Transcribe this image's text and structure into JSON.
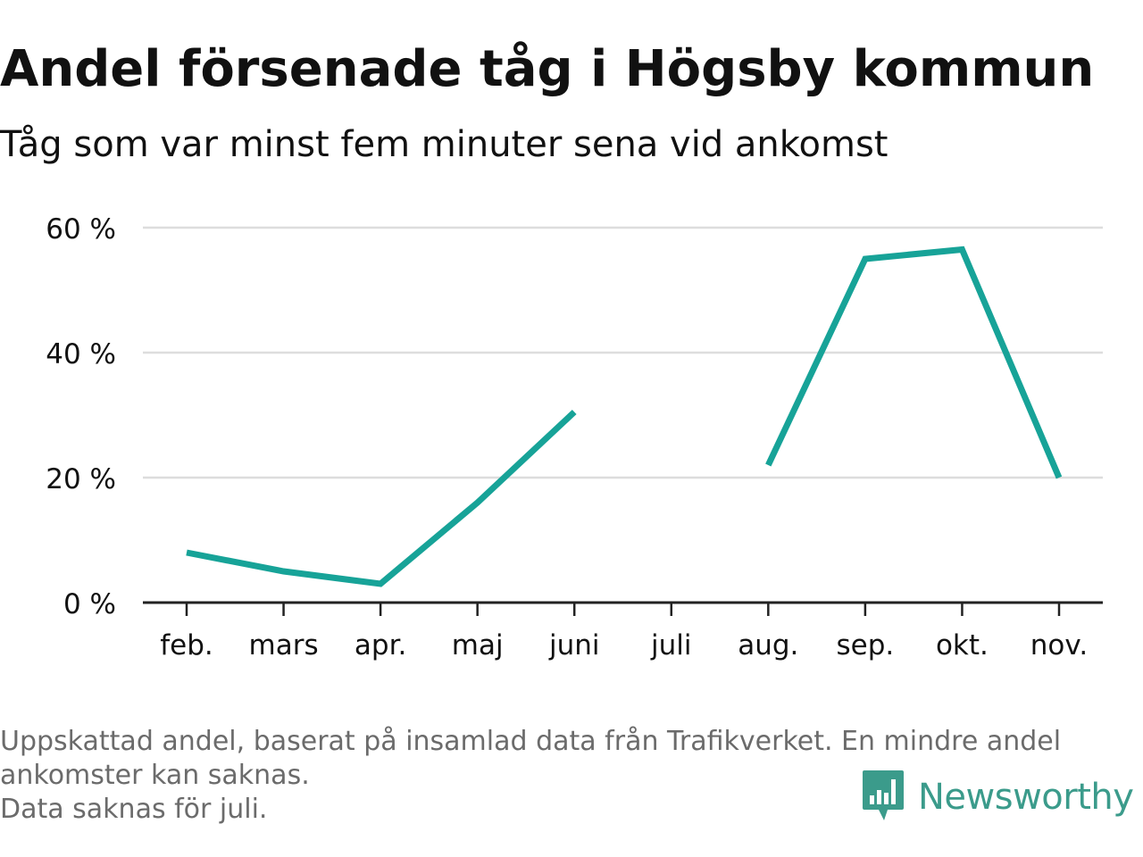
{
  "title": "Andel försenade tåg i Högsby kommun",
  "subtitle": "Tåg som var minst fem minuter sena vid ankomst",
  "footnote": {
    "line1": "Uppskattad andel, baserat på insamlad data från Trafikverket. En mindre andel",
    "line2": "ankomster kan saknas.",
    "line3": "Data saknas för juli."
  },
  "logo": {
    "text": "Newsworthy",
    "icon": "newsworthy-bar-chart-bubble-icon",
    "color": "#3b9b8b"
  },
  "colors": {
    "line": "#17a398",
    "grid": "#dddddd",
    "axis": "#222222",
    "text": "#111111",
    "footnote": "#6b6b6b"
  },
  "chart_data": {
    "type": "line",
    "categories": [
      "feb.",
      "mars",
      "apr.",
      "maj",
      "juni",
      "juli",
      "aug.",
      "sep.",
      "okt.",
      "nov."
    ],
    "series": [
      {
        "values": [
          8,
          5,
          3,
          16,
          30.5,
          null,
          22,
          55,
          56.5,
          20
        ]
      }
    ],
    "ylim": [
      0,
      60
    ],
    "yticks": [
      0,
      20,
      40,
      60
    ],
    "ytick_labels": [
      "0 %",
      "20 %",
      "40 %",
      "60 %"
    ],
    "grid": true,
    "legend": "none",
    "xlabel": "",
    "ylabel": ""
  }
}
